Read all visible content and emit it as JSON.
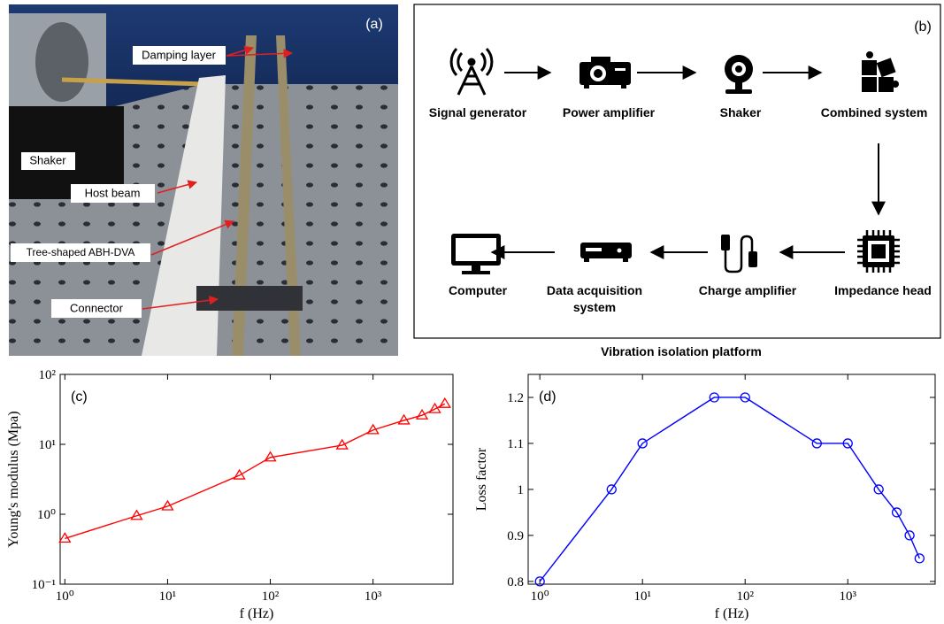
{
  "photo": {
    "panel_label": "(a)",
    "labels": [
      "Damping layer",
      "Shaker",
      "Host beam",
      "Tree-shaped ABH-DVA",
      "Connector"
    ]
  },
  "diagram": {
    "panel_label": "(b)",
    "caption": "Vibration isolation platform",
    "nodes": [
      {
        "label": [
          "Signal generator"
        ]
      },
      {
        "label": [
          "Power amplifier"
        ]
      },
      {
        "label": [
          "Shaker"
        ]
      },
      {
        "label": [
          "Combined system"
        ]
      },
      {
        "label": [
          "Impedance head"
        ]
      },
      {
        "label": [
          "Charge amplifier"
        ]
      },
      {
        "label": [
          "Data acquisition",
          "system"
        ]
      },
      {
        "label": [
          "Computer"
        ]
      }
    ]
  },
  "chart_data": [
    {
      "type": "line",
      "panel_label": "(c)",
      "x_label": "f (Hz)",
      "y_label": "Young's modulus (Mpa)",
      "x": [
        1,
        5,
        10,
        50,
        100,
        500,
        1000,
        2000,
        3000,
        4000,
        5000
      ],
      "values": [
        0.45,
        0.95,
        1.3,
        3.6,
        6.5,
        9.7,
        16,
        22,
        26,
        32,
        38
      ],
      "color": "#ff0000",
      "marker": "triangle",
      "xscale": "log",
      "yscale": "log",
      "xlim": [
        0.9,
        6000
      ],
      "ylim": [
        0.1,
        100
      ],
      "xticks": [
        {
          "value": 1,
          "label": "10⁰"
        },
        {
          "value": 10,
          "label": "10¹"
        },
        {
          "value": 100,
          "label": "10²"
        },
        {
          "value": 1000,
          "label": "10³"
        }
      ],
      "yticks": [
        {
          "value": 0.1,
          "label": "10⁻¹"
        },
        {
          "value": 1,
          "label": "10⁰"
        },
        {
          "value": 10,
          "label": "10¹"
        },
        {
          "value": 100,
          "label": "10²"
        }
      ]
    },
    {
      "type": "line",
      "panel_label": "(d)",
      "x_label": "f (Hz)",
      "y_label": "Loss factor",
      "x": [
        1,
        5,
        10,
        50,
        100,
        500,
        1000,
        2000,
        3000,
        4000,
        5000
      ],
      "values": [
        0.8,
        1.0,
        1.1,
        1.2,
        1.2,
        1.1,
        1.1,
        1.0,
        0.95,
        0.9,
        0.85
      ],
      "color": "#0000ff",
      "marker": "circle",
      "xscale": "log",
      "yscale": "linear",
      "xlim": [
        0.77,
        7100
      ],
      "ylim": [
        0.794,
        1.25
      ],
      "xticks": [
        {
          "value": 1,
          "label": "10⁰"
        },
        {
          "value": 10,
          "label": "10¹"
        },
        {
          "value": 100,
          "label": "10²"
        },
        {
          "value": 1000,
          "label": "10³"
        }
      ],
      "yticks": [
        0.8,
        0.9,
        1,
        1.1,
        1.2
      ]
    }
  ]
}
